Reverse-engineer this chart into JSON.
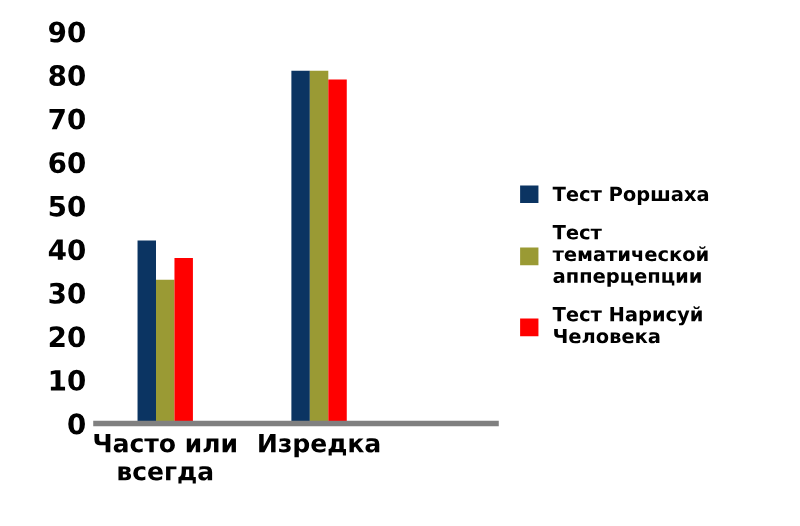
{
  "chart_data": {
    "type": "bar",
    "categories": [
      "Часто или\nвсегда",
      "Изредка"
    ],
    "series": [
      {
        "name": "Тест Роршаха",
        "color": "#0b3462",
        "values": [
          42,
          81
        ]
      },
      {
        "name": "Тест\nтематической\nапперцепции",
        "color": "#9a9a34",
        "values": [
          33,
          81
        ]
      },
      {
        "name": "Тест Нарисуй\nЧеловека",
        "color": "#ff0000",
        "values": [
          38,
          79
        ]
      }
    ],
    "ylim": [
      0,
      90
    ],
    "yticks": [
      0,
      10,
      20,
      30,
      40,
      50,
      60,
      70,
      80,
      90
    ],
    "grid": false,
    "legend": "right"
  }
}
